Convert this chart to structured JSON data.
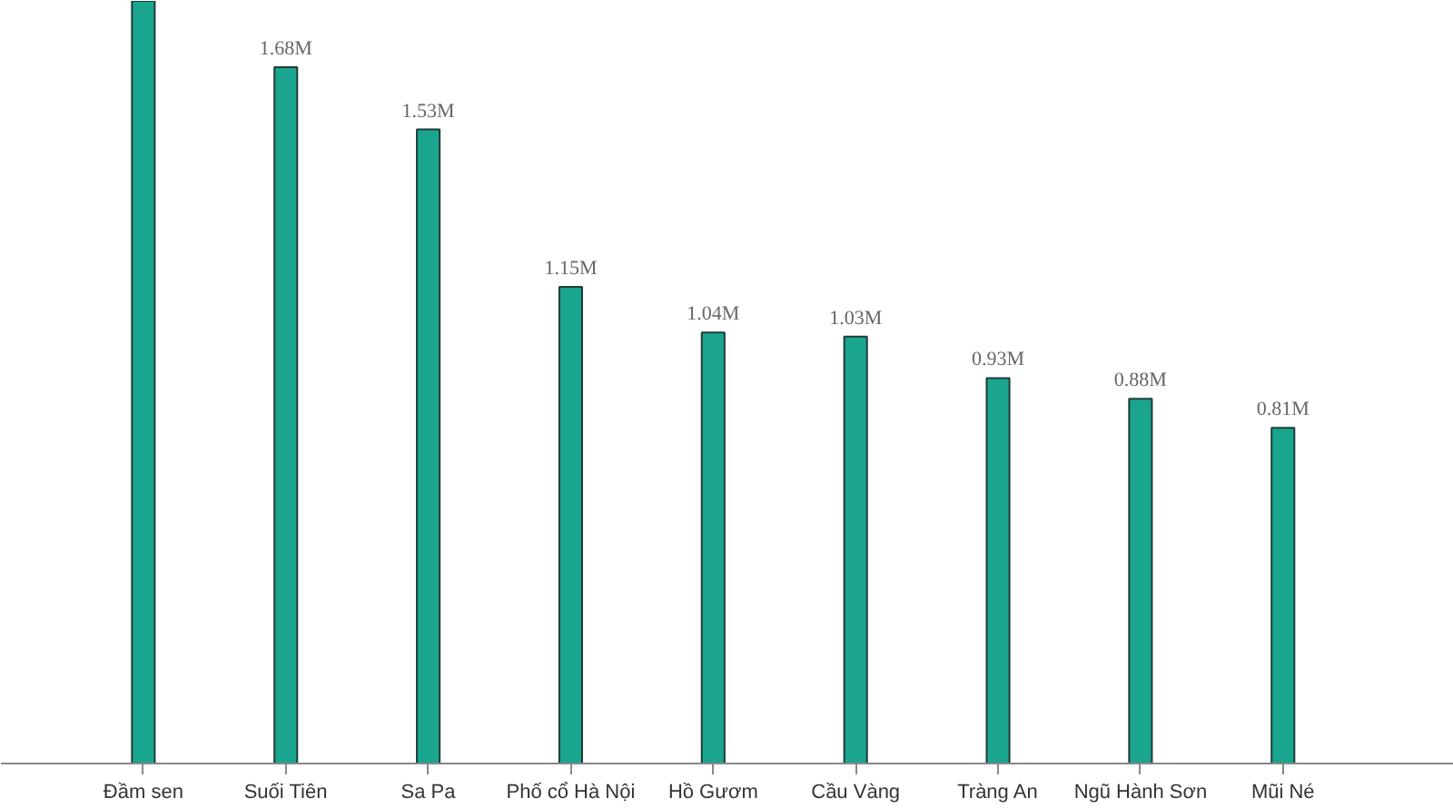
{
  "chart_data": {
    "type": "bar",
    "categories": [
      "Đầm sen",
      "Suối Tiên",
      "Sa Pa",
      "Phố cổ Hà Nội",
      "Hồ Gươm",
      "Cầu Vàng",
      "Tràng An",
      "Ngũ Hành Sơn",
      "Mũi Né"
    ],
    "values": [
      1.84,
      1.68,
      1.53,
      1.15,
      1.04,
      1.03,
      0.93,
      0.88,
      0.81
    ],
    "value_labels": [
      null,
      "1.68M",
      "1.53M",
      "1.15M",
      "1.04M",
      "1.03M",
      "0.93M",
      "0.88M",
      "0.81M"
    ],
    "color": "#1aa58f",
    "ylim": [
      0,
      1.84
    ]
  }
}
